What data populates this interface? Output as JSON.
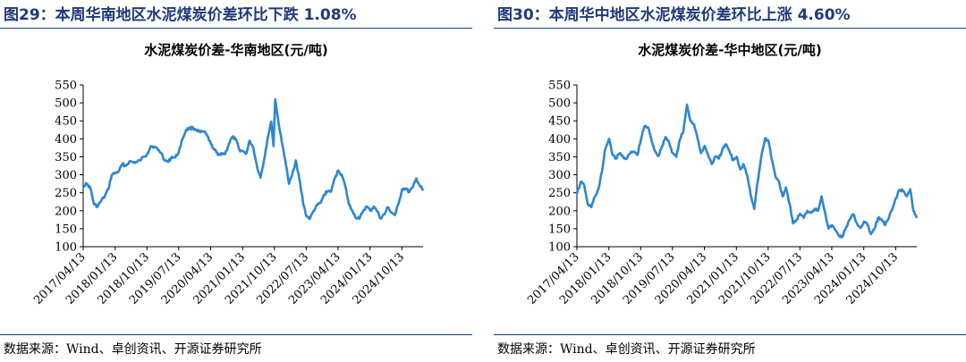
{
  "figures": [
    {
      "fig_title": "图29：本周华南地区水泥煤炭价差环比下跌 1.08%",
      "source": "数据来源：Wind、卓创资讯、开源证券研究所"
    },
    {
      "fig_title": "图30：本周华中地区水泥煤炭价差环比上涨 4.60%",
      "source": "数据来源：Wind、卓创资讯、开源证券研究所"
    }
  ],
  "chart_data": [
    {
      "type": "line",
      "title": "水泥煤炭价差-华南地区(元/吨)",
      "ylim": [
        100,
        550
      ],
      "yticks": [
        "100",
        "150",
        "200",
        "250",
        "300",
        "350",
        "400",
        "450",
        "500",
        "550"
      ],
      "xlim": [
        "2017-04-13",
        "2025-04-13"
      ],
      "xticks": [
        "2017/04/13",
        "2018/01/13",
        "2018/10/13",
        "2019/07/13",
        "2020/04/13",
        "2021/01/13",
        "2021/10/13",
        "2022/07/13",
        "2023/04/13",
        "2024/01/13",
        "2024/10/13"
      ],
      "grid": false,
      "line_color": "#2e86d1",
      "series": [
        {
          "points": [
            [
              "2017-04-13",
              270
            ],
            [
              "2017-05-15",
              275
            ],
            [
              "2017-06-15",
              262
            ],
            [
              "2017-07-15",
              218
            ],
            [
              "2017-08-15",
              212
            ],
            [
              "2017-09-15",
              228
            ],
            [
              "2017-10-15",
              240
            ],
            [
              "2017-11-15",
              260
            ],
            [
              "2017-12-15",
              300
            ],
            [
              "2018-01-15",
              305
            ],
            [
              "2018-02-15",
              310
            ],
            [
              "2018-03-15",
              330
            ],
            [
              "2018-04-15",
              325
            ],
            [
              "2018-05-15",
              337
            ],
            [
              "2018-06-15",
              335
            ],
            [
              "2018-07-15",
              335
            ],
            [
              "2018-08-15",
              340
            ],
            [
              "2018-09-15",
              350
            ],
            [
              "2018-10-15",
              358
            ],
            [
              "2018-11-15",
              380
            ],
            [
              "2018-12-15",
              378
            ],
            [
              "2019-01-15",
              370
            ],
            [
              "2019-02-15",
              360
            ],
            [
              "2019-03-15",
              340
            ],
            [
              "2019-04-15",
              336
            ],
            [
              "2019-05-15",
              350
            ],
            [
              "2019-06-15",
              348
            ],
            [
              "2019-07-15",
              365
            ],
            [
              "2019-08-15",
              400
            ],
            [
              "2019-09-15",
              425
            ],
            [
              "2019-10-15",
              430
            ],
            [
              "2019-11-15",
              430
            ],
            [
              "2019-12-15",
              425
            ],
            [
              "2020-01-15",
              418
            ],
            [
              "2020-02-15",
              420
            ],
            [
              "2020-03-15",
              408
            ],
            [
              "2020-04-15",
              385
            ],
            [
              "2020-05-15",
              370
            ],
            [
              "2020-06-15",
              355
            ],
            [
              "2020-07-15",
              360
            ],
            [
              "2020-08-15",
              358
            ],
            [
              "2020-09-15",
              385
            ],
            [
              "2020-10-15",
              405
            ],
            [
              "2020-11-15",
              398
            ],
            [
              "2020-12-15",
              370
            ],
            [
              "2021-01-15",
              365
            ],
            [
              "2021-02-15",
              360
            ],
            [
              "2021-03-15",
              395
            ],
            [
              "2021-04-15",
              375
            ],
            [
              "2021-05-15",
              325
            ],
            [
              "2021-06-15",
              292
            ],
            [
              "2021-07-15",
              340
            ],
            [
              "2021-08-15",
              400
            ],
            [
              "2021-09-15",
              448
            ],
            [
              "2021-10-05",
              380
            ],
            [
              "2021-10-20",
              510
            ],
            [
              "2021-11-15",
              450
            ],
            [
              "2021-12-15",
              392
            ],
            [
              "2022-01-15",
              340
            ],
            [
              "2022-02-15",
              275
            ],
            [
              "2022-03-15",
              300
            ],
            [
              "2022-04-15",
              340
            ],
            [
              "2022-05-15",
              290
            ],
            [
              "2022-06-15",
              225
            ],
            [
              "2022-07-15",
              185
            ],
            [
              "2022-08-15",
              178
            ],
            [
              "2022-09-15",
              200
            ],
            [
              "2022-10-15",
              215
            ],
            [
              "2022-11-15",
              222
            ],
            [
              "2022-12-15",
              245
            ],
            [
              "2023-01-15",
              255
            ],
            [
              "2023-02-15",
              255
            ],
            [
              "2023-03-15",
              290
            ],
            [
              "2023-04-15",
              312
            ],
            [
              "2023-05-15",
              300
            ],
            [
              "2023-06-15",
              268
            ],
            [
              "2023-07-15",
              218
            ],
            [
              "2023-08-15",
              200
            ],
            [
              "2023-09-15",
              180
            ],
            [
              "2023-10-15",
              178
            ],
            [
              "2023-11-15",
              200
            ],
            [
              "2023-12-15",
              212
            ],
            [
              "2024-01-15",
              200
            ],
            [
              "2024-02-15",
              212
            ],
            [
              "2024-03-15",
              198
            ],
            [
              "2024-04-15",
              178
            ],
            [
              "2024-05-15",
              190
            ],
            [
              "2024-06-15",
              210
            ],
            [
              "2024-07-15",
              195
            ],
            [
              "2024-08-15",
              188
            ],
            [
              "2024-09-15",
              220
            ],
            [
              "2024-10-15",
              260
            ],
            [
              "2024-11-15",
              262
            ],
            [
              "2024-12-15",
              252
            ],
            [
              "2025-01-15",
              265
            ],
            [
              "2025-02-15",
              290
            ],
            [
              "2025-03-15",
              270
            ],
            [
              "2025-04-10",
              258
            ]
          ]
        }
      ]
    },
    {
      "type": "line",
      "title": "水泥煤炭价差-华中地区(元/吨)",
      "ylim": [
        100,
        550
      ],
      "yticks": [
        "100",
        "150",
        "200",
        "250",
        "300",
        "350",
        "400",
        "450",
        "500",
        "550"
      ],
      "xlim": [
        "2017-04-13",
        "2025-04-13"
      ],
      "xticks": [
        "2017/04/13",
        "2018/01/13",
        "2018/10/13",
        "2019/07/13",
        "2020/04/13",
        "2021/01/13",
        "2021/10/13",
        "2022/07/13",
        "2023/04/13",
        "2024/01/13",
        "2024/10/13"
      ],
      "grid": false,
      "line_color": "#2e86d1",
      "series": [
        {
          "points": [
            [
              "2017-04-13",
              248
            ],
            [
              "2017-05-15",
              280
            ],
            [
              "2017-06-15",
              270
            ],
            [
              "2017-07-15",
              218
            ],
            [
              "2017-08-15",
              210
            ],
            [
              "2017-09-15",
              240
            ],
            [
              "2017-10-15",
              260
            ],
            [
              "2017-11-15",
              310
            ],
            [
              "2017-12-15",
              375
            ],
            [
              "2018-01-15",
              400
            ],
            [
              "2018-02-15",
              355
            ],
            [
              "2018-03-15",
              345
            ],
            [
              "2018-04-15",
              360
            ],
            [
              "2018-05-15",
              350
            ],
            [
              "2018-06-15",
              345
            ],
            [
              "2018-07-15",
              360
            ],
            [
              "2018-08-15",
              365
            ],
            [
              "2018-09-15",
              355
            ],
            [
              "2018-10-15",
              398
            ],
            [
              "2018-11-15",
              435
            ],
            [
              "2018-12-15",
              432
            ],
            [
              "2019-01-15",
              395
            ],
            [
              "2019-02-15",
              365
            ],
            [
              "2019-03-15",
              352
            ],
            [
              "2019-04-15",
              380
            ],
            [
              "2019-05-15",
              405
            ],
            [
              "2019-06-15",
              390
            ],
            [
              "2019-07-15",
              360
            ],
            [
              "2019-08-15",
              350
            ],
            [
              "2019-09-15",
              398
            ],
            [
              "2019-10-15",
              420
            ],
            [
              "2019-11-15",
              495
            ],
            [
              "2019-12-15",
              450
            ],
            [
              "2020-01-15",
              440
            ],
            [
              "2020-02-15",
              400
            ],
            [
              "2020-03-15",
              360
            ],
            [
              "2020-04-15",
              380
            ],
            [
              "2020-05-15",
              355
            ],
            [
              "2020-06-15",
              330
            ],
            [
              "2020-07-15",
              350
            ],
            [
              "2020-08-15",
              345
            ],
            [
              "2020-09-15",
              370
            ],
            [
              "2020-10-15",
              385
            ],
            [
              "2020-11-15",
              365
            ],
            [
              "2020-12-15",
              340
            ],
            [
              "2021-01-15",
              350
            ],
            [
              "2021-02-15",
              315
            ],
            [
              "2021-03-15",
              330
            ],
            [
              "2021-04-15",
              300
            ],
            [
              "2021-05-15",
              245
            ],
            [
              "2021-06-15",
              205
            ],
            [
              "2021-07-15",
              280
            ],
            [
              "2021-08-15",
              350
            ],
            [
              "2021-09-15",
              400
            ],
            [
              "2021-10-15",
              395
            ],
            [
              "2021-11-15",
              340
            ],
            [
              "2021-12-15",
              295
            ],
            [
              "2022-01-15",
              280
            ],
            [
              "2022-02-15",
              240
            ],
            [
              "2022-03-15",
              265
            ],
            [
              "2022-04-15",
              220
            ],
            [
              "2022-05-15",
              165
            ],
            [
              "2022-06-15",
              175
            ],
            [
              "2022-07-15",
              192
            ],
            [
              "2022-08-15",
              180
            ],
            [
              "2022-09-15",
              200
            ],
            [
              "2022-10-15",
              195
            ],
            [
              "2022-11-15",
              205
            ],
            [
              "2022-12-15",
              200
            ],
            [
              "2023-01-15",
              240
            ],
            [
              "2023-02-15",
              195
            ],
            [
              "2023-03-15",
              150
            ],
            [
              "2023-04-15",
              160
            ],
            [
              "2023-05-15",
              145
            ],
            [
              "2023-06-15",
              130
            ],
            [
              "2023-07-15",
              128
            ],
            [
              "2023-08-15",
              155
            ],
            [
              "2023-09-15",
              175
            ],
            [
              "2023-10-15",
              190
            ],
            [
              "2023-11-15",
              165
            ],
            [
              "2023-12-15",
              152
            ],
            [
              "2024-01-15",
              170
            ],
            [
              "2024-02-15",
              160
            ],
            [
              "2024-03-15",
              135
            ],
            [
              "2024-04-15",
              150
            ],
            [
              "2024-05-15",
              180
            ],
            [
              "2024-06-15",
              175
            ],
            [
              "2024-07-15",
              160
            ],
            [
              "2024-08-15",
              180
            ],
            [
              "2024-09-15",
              205
            ],
            [
              "2024-10-15",
              235
            ],
            [
              "2024-11-15",
              258
            ],
            [
              "2024-12-15",
              255
            ],
            [
              "2025-01-15",
              240
            ],
            [
              "2025-02-15",
              260
            ],
            [
              "2025-03-15",
              200
            ],
            [
              "2025-04-10",
              182
            ]
          ]
        }
      ]
    }
  ]
}
